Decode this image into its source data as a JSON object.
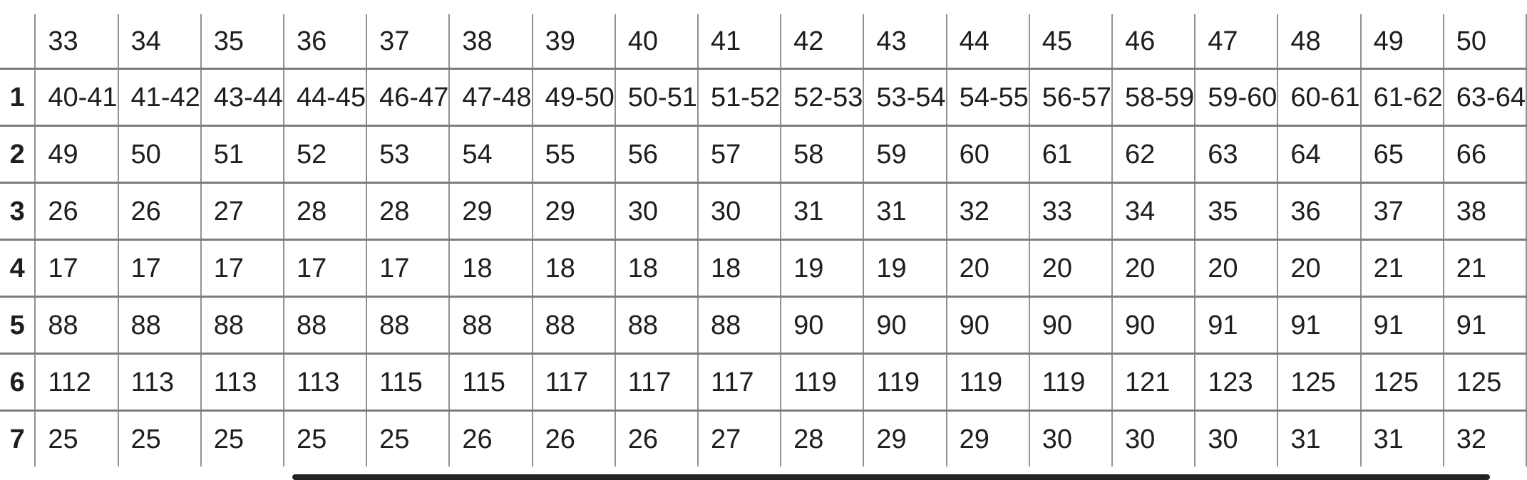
{
  "table": {
    "corner_label": "",
    "column_headers": [
      "33",
      "34",
      "35",
      "36",
      "37",
      "38",
      "39",
      "40",
      "41",
      "42",
      "43",
      "44",
      "45",
      "46",
      "47",
      "48",
      "49",
      "50"
    ],
    "rows": [
      {
        "label": "1",
        "cells": [
          "40-41",
          "41-42",
          "43-44",
          "44-45",
          "46-47",
          "47-48",
          "49-50",
          "50-51",
          "51-52",
          "52-53",
          "53-54",
          "54-55",
          "56-57",
          "58-59",
          "59-60",
          "60-61",
          "61-62",
          "63-64"
        ]
      },
      {
        "label": "2",
        "cells": [
          "49",
          "50",
          "51",
          "52",
          "53",
          "54",
          "55",
          "56",
          "57",
          "58",
          "59",
          "60",
          "61",
          "62",
          "63",
          "64",
          "65",
          "66"
        ]
      },
      {
        "label": "3",
        "cells": [
          "26",
          "26",
          "27",
          "28",
          "28",
          "29",
          "29",
          "30",
          "30",
          "31",
          "31",
          "32",
          "33",
          "34",
          "35",
          "36",
          "37",
          "38"
        ]
      },
      {
        "label": "4",
        "cells": [
          "17",
          "17",
          "17",
          "17",
          "17",
          "18",
          "18",
          "18",
          "18",
          "19",
          "19",
          "20",
          "20",
          "20",
          "20",
          "20",
          "21",
          "21"
        ]
      },
      {
        "label": "5",
        "cells": [
          "88",
          "88",
          "88",
          "88",
          "88",
          "88",
          "88",
          "88",
          "88",
          "90",
          "90",
          "90",
          "90",
          "90",
          "91",
          "91",
          "91",
          "91"
        ]
      },
      {
        "label": "6",
        "cells": [
          "112",
          "113",
          "113",
          "113",
          "115",
          "115",
          "117",
          "117",
          "117",
          "119",
          "119",
          "119",
          "119",
          "121",
          "123",
          "125",
          "125",
          "125"
        ]
      },
      {
        "label": "7",
        "cells": [
          "25",
          "25",
          "25",
          "25",
          "25",
          "26",
          "26",
          "26",
          "27",
          "28",
          "29",
          "29",
          "30",
          "30",
          "30",
          "31",
          "31",
          "32"
        ]
      }
    ]
  },
  "scrollbar": {
    "orientation": "horizontal"
  },
  "colors": {
    "text": "#1e1e1e",
    "grid_line_horizontal": "#7d7d7d",
    "grid_line_vertical": "#919191",
    "scrollbar_thumb": "#222222",
    "background": "#ffffff"
  }
}
